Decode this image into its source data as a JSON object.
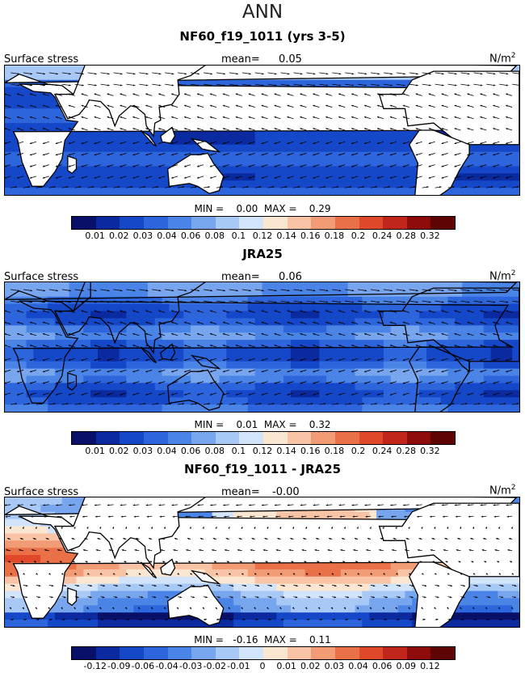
{
  "title": "ANN",
  "panels": [
    {
      "title": "NF60_f19_1011 (yrs 3-5)",
      "variable": "Surface stress",
      "mean_label": "mean=",
      "mean_value": "0.05",
      "unit": "N/m",
      "unit_sup": "2",
      "stats": "MIN =    0.00  MAX =    0.29",
      "field": "model",
      "colorbar_ticks": [
        "0.01",
        "0.02",
        "0.03",
        "0.04",
        "0.06",
        "0.08",
        "0.1",
        "0.12",
        "0.14",
        "0.16",
        "0.18",
        "0.2",
        "0.24",
        "0.28",
        "0.32"
      ],
      "colors": [
        "#08106a",
        "#0c2aa0",
        "#1548c8",
        "#2d66dc",
        "#4a84e6",
        "#78a6ee",
        "#a8c8f6",
        "#d2e4fa",
        "#fbe6d2",
        "#f9c4a6",
        "#f29c76",
        "#ea7048",
        "#e0482a",
        "#c2261a",
        "#8e0c0c",
        "#5e0404"
      ]
    },
    {
      "title": "JRA25",
      "variable": "Surface stress",
      "mean_label": "mean=",
      "mean_value": "0.06",
      "unit": "N/m",
      "unit_sup": "2",
      "stats": "MIN =    0.01  MAX =    0.32",
      "field": "obs",
      "colorbar_ticks": [
        "0.01",
        "0.02",
        "0.03",
        "0.04",
        "0.06",
        "0.08",
        "0.1",
        "0.12",
        "0.14",
        "0.16",
        "0.18",
        "0.2",
        "0.24",
        "0.28",
        "0.32"
      ],
      "colors": [
        "#08106a",
        "#0c2aa0",
        "#1548c8",
        "#2d66dc",
        "#4a84e6",
        "#78a6ee",
        "#a8c8f6",
        "#d2e4fa",
        "#fbe6d2",
        "#f9c4a6",
        "#f29c76",
        "#ea7048",
        "#e0482a",
        "#c2261a",
        "#8e0c0c",
        "#5e0404"
      ]
    },
    {
      "title": "NF60_f19_1011 - JRA25",
      "variable": "Surface stress",
      "mean_label": "mean=",
      "mean_value": "-0.00",
      "unit": "N/m",
      "unit_sup": "2",
      "stats": "MIN =   -0.16  MAX =    0.11",
      "field": "diff",
      "colorbar_ticks": [
        "-0.12",
        "-0.09",
        "-0.06",
        "-0.04",
        "-0.03",
        "-0.02",
        "-0.01",
        "0",
        "0.01",
        "0.02",
        "0.03",
        "0.04",
        "0.06",
        "0.09",
        "0.12"
      ],
      "colors": [
        "#08106a",
        "#0c2aa0",
        "#1548c8",
        "#2d66dc",
        "#4a84e6",
        "#78a6ee",
        "#a8c8f6",
        "#d2e4fa",
        "#fbe6d2",
        "#f9c4a6",
        "#f29c76",
        "#ea7048",
        "#e0482a",
        "#c2261a",
        "#8e0c0c",
        "#5e0404"
      ]
    }
  ]
}
